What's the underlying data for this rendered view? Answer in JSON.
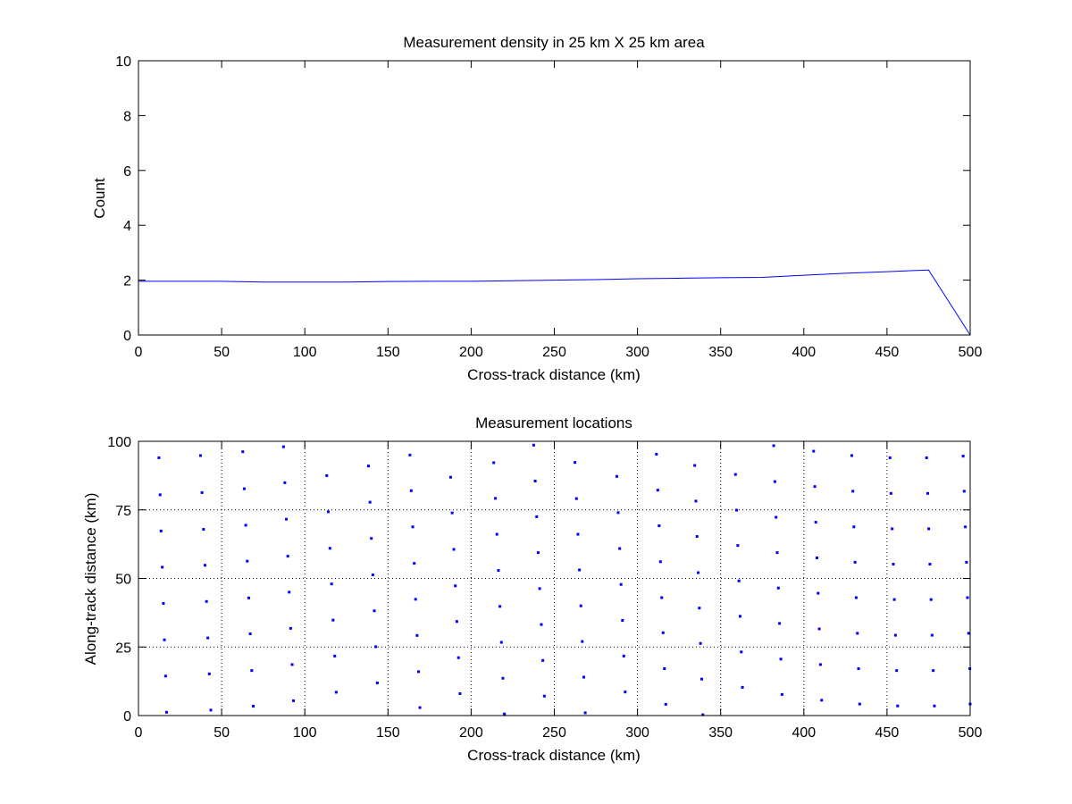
{
  "chart_data": [
    {
      "type": "line",
      "title": "Measurement density in 25 km X 25 km area",
      "xlabel": "Cross-track distance (km)",
      "ylabel": "Count",
      "xlim": [
        0,
        500
      ],
      "ylim": [
        0,
        10
      ],
      "xticks": [
        "0",
        "50",
        "100",
        "150",
        "200",
        "250",
        "300",
        "350",
        "400",
        "450",
        "500"
      ],
      "yticks": [
        "0",
        "2",
        "4",
        "6",
        "8",
        "10"
      ],
      "grid": false,
      "line_color": "#0000ff",
      "series": [
        {
          "x": [
            0,
            25,
            50,
            75,
            100,
            125,
            150,
            175,
            200,
            225,
            250,
            275,
            300,
            325,
            350,
            375,
            400,
            425,
            450,
            475,
            500
          ],
          "values": [
            1.96,
            1.96,
            1.96,
            1.93,
            1.93,
            1.93,
            1.95,
            1.96,
            1.96,
            1.98,
            2.0,
            2.02,
            2.05,
            2.07,
            2.09,
            2.1,
            2.18,
            2.25,
            2.31,
            2.37,
            0
          ]
        }
      ]
    },
    {
      "type": "scatter",
      "title": "Measurement locations",
      "xlabel": "Cross-track distance (km)",
      "ylabel": "Along-track distance (km)",
      "xlim": [
        0,
        500
      ],
      "ylim": [
        0,
        100
      ],
      "xticks": [
        "0",
        "50",
        "100",
        "150",
        "200",
        "250",
        "300",
        "350",
        "400",
        "450",
        "500"
      ],
      "yticks": [
        "0",
        "25",
        "50",
        "75",
        "100"
      ],
      "grid": true,
      "marker_color": "#0000ff",
      "points": [
        [
          12.3,
          94.0
        ],
        [
          13.0,
          80.5
        ],
        [
          13.6,
          67.3
        ],
        [
          14.3,
          54.1
        ],
        [
          15.0,
          40.9
        ],
        [
          15.6,
          27.6
        ],
        [
          16.3,
          14.4
        ],
        [
          16.9,
          1.2
        ],
        [
          37.3,
          94.8
        ],
        [
          38.2,
          81.3
        ],
        [
          39.1,
          67.9
        ],
        [
          40.0,
          54.8
        ],
        [
          40.9,
          41.6
        ],
        [
          41.7,
          28.3
        ],
        [
          42.6,
          15.2
        ],
        [
          43.5,
          2.0
        ],
        [
          62.7,
          96.2
        ],
        [
          63.6,
          82.7
        ],
        [
          64.5,
          69.4
        ],
        [
          65.4,
          56.3
        ],
        [
          66.3,
          42.9
        ],
        [
          67.2,
          29.8
        ],
        [
          68.1,
          16.4
        ],
        [
          69.0,
          3.4
        ],
        [
          87.2,
          98.0
        ],
        [
          88.0,
          84.9
        ],
        [
          88.9,
          71.6
        ],
        [
          89.8,
          58.1
        ],
        [
          90.6,
          45.0
        ],
        [
          91.5,
          31.8
        ],
        [
          92.4,
          18.6
        ],
        [
          93.2,
          5.4
        ],
        [
          113.2,
          87.5
        ],
        [
          114.1,
          74.3
        ],
        [
          115.1,
          61.0
        ],
        [
          116.1,
          48.0
        ],
        [
          117.0,
          34.8
        ],
        [
          118.0,
          21.7
        ],
        [
          118.9,
          8.5
        ],
        [
          138.3,
          91.0
        ],
        [
          139.2,
          77.8
        ],
        [
          140.0,
          64.6
        ],
        [
          140.9,
          51.3
        ],
        [
          141.8,
          38.2
        ],
        [
          142.7,
          25.1
        ],
        [
          143.6,
          11.9
        ],
        [
          163.2,
          95.0
        ],
        [
          164.0,
          82.0
        ],
        [
          164.9,
          68.8
        ],
        [
          165.8,
          55.5
        ],
        [
          166.6,
          42.4
        ],
        [
          167.5,
          29.2
        ],
        [
          168.4,
          16.0
        ],
        [
          169.2,
          2.9
        ],
        [
          187.7,
          86.9
        ],
        [
          188.6,
          73.9
        ],
        [
          189.6,
          60.6
        ],
        [
          190.5,
          47.3
        ],
        [
          191.4,
          34.3
        ],
        [
          192.4,
          21.1
        ],
        [
          193.3,
          8.0
        ],
        [
          213.6,
          92.2
        ],
        [
          214.6,
          79.2
        ],
        [
          215.5,
          66.1
        ],
        [
          216.4,
          52.9
        ],
        [
          217.3,
          39.8
        ],
        [
          218.2,
          26.7
        ],
        [
          219.1,
          13.6
        ],
        [
          220.0,
          0.6
        ],
        [
          237.6,
          98.6
        ],
        [
          238.5,
          85.5
        ],
        [
          239.4,
          72.5
        ],
        [
          240.3,
          59.4
        ],
        [
          241.2,
          46.3
        ],
        [
          242.2,
          33.2
        ],
        [
          243.1,
          20.1
        ],
        [
          244.0,
          7.1
        ],
        [
          262.4,
          92.3
        ],
        [
          263.3,
          79.1
        ],
        [
          264.2,
          66.1
        ],
        [
          265.1,
          53.1
        ],
        [
          266.0,
          40.0
        ],
        [
          266.8,
          27.0
        ],
        [
          267.7,
          14.0
        ],
        [
          268.6,
          1.0
        ],
        [
          287.6,
          87.2
        ],
        [
          288.4,
          74.0
        ],
        [
          289.3,
          60.9
        ],
        [
          290.1,
          47.8
        ],
        [
          291.0,
          34.7
        ],
        [
          291.8,
          21.7
        ],
        [
          292.6,
          8.6
        ],
        [
          311.4,
          95.3
        ],
        [
          312.2,
          82.2
        ],
        [
          313.0,
          69.2
        ],
        [
          313.8,
          56.1
        ],
        [
          314.6,
          43.0
        ],
        [
          315.4,
          30.2
        ],
        [
          316.2,
          17.1
        ],
        [
          317.0,
          4.1
        ],
        [
          334.4,
          91.2
        ],
        [
          335.1,
          78.2
        ],
        [
          335.8,
          65.3
        ],
        [
          336.5,
          52.1
        ],
        [
          337.2,
          39.2
        ],
        [
          337.9,
          26.3
        ],
        [
          338.6,
          13.3
        ],
        [
          339.3,
          0.3
        ],
        [
          358.9,
          87.9
        ],
        [
          359.6,
          74.9
        ],
        [
          360.3,
          62.0
        ],
        [
          361.0,
          49.1
        ],
        [
          361.7,
          36.2
        ],
        [
          362.4,
          23.2
        ],
        [
          363.1,
          10.3
        ],
        [
          381.9,
          98.4
        ],
        [
          382.6,
          85.3
        ],
        [
          383.3,
          72.3
        ],
        [
          384.0,
          59.4
        ],
        [
          384.7,
          46.5
        ],
        [
          385.4,
          33.6
        ],
        [
          386.2,
          20.6
        ],
        [
          386.9,
          7.7
        ],
        [
          405.9,
          96.4
        ],
        [
          406.6,
          83.5
        ],
        [
          407.2,
          70.5
        ],
        [
          407.9,
          57.5
        ],
        [
          408.6,
          44.6
        ],
        [
          409.3,
          31.6
        ],
        [
          410.0,
          18.6
        ],
        [
          410.7,
          5.6
        ],
        [
          428.8,
          94.8
        ],
        [
          429.5,
          81.8
        ],
        [
          430.1,
          68.8
        ],
        [
          430.8,
          55.9
        ],
        [
          431.5,
          43.0
        ],
        [
          432.2,
          30.0
        ],
        [
          432.9,
          17.1
        ],
        [
          433.6,
          4.2
        ],
        [
          451.8,
          94.0
        ],
        [
          452.4,
          81.0
        ],
        [
          453.1,
          68.1
        ],
        [
          453.8,
          55.2
        ],
        [
          454.4,
          42.3
        ],
        [
          455.1,
          29.3
        ],
        [
          455.8,
          16.4
        ],
        [
          456.4,
          3.5
        ],
        [
          473.8,
          94.0
        ],
        [
          474.5,
          81.0
        ],
        [
          475.1,
          68.1
        ],
        [
          475.8,
          55.2
        ],
        [
          476.5,
          42.3
        ],
        [
          477.1,
          29.3
        ],
        [
          477.8,
          16.4
        ],
        [
          478.5,
          3.5
        ],
        [
          495.8,
          94.6
        ],
        [
          496.4,
          81.8
        ],
        [
          497.1,
          68.8
        ],
        [
          497.8,
          55.9
        ],
        [
          498.4,
          43.0
        ],
        [
          499.1,
          30.0
        ],
        [
          499.8,
          17.1
        ],
        [
          500.0,
          4.2
        ]
      ]
    }
  ]
}
